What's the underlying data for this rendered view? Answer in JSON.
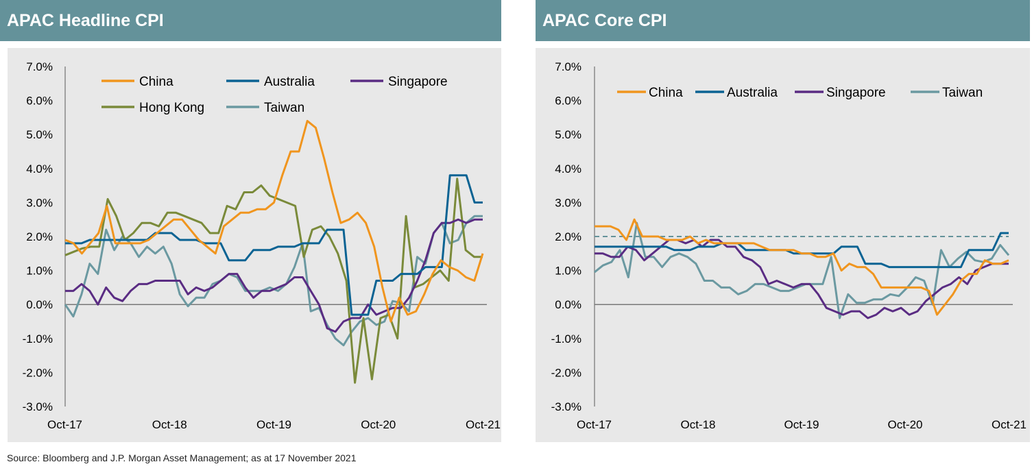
{
  "source": "Source: Bloomberg and J.P. Morgan Asset Management; as at 17 November 2021",
  "colors": {
    "header_bg": "#64929a",
    "plot_bg": "#e8e8e8",
    "China": "#f0951e",
    "Australia": "#0b6393",
    "Singapore": "#5a2c83",
    "Hong Kong": "#7a8a3a",
    "Taiwan": "#6b99a1"
  },
  "chart_data": [
    {
      "type": "line",
      "title": "APAC Headline CPI",
      "x_ticks": [
        "Oct-17",
        "Oct-18",
        "Oct-19",
        "Oct-20",
        "Oct-21"
      ],
      "y_ticks": [
        "7.0%",
        "6.0%",
        "5.0%",
        "4.0%",
        "3.0%",
        "2.0%",
        "1.0%",
        "0.0%",
        "-1.0%",
        "-2.0%",
        "-3.0%"
      ],
      "ylim": [
        -3,
        7
      ],
      "x_start": "2017-10",
      "legend": [
        "China",
        "Australia",
        "Singapore",
        "Hong Kong",
        "Taiwan"
      ],
      "series": [
        {
          "name": "China",
          "values": [
            1.9,
            1.8,
            1.5,
            1.8,
            2.1,
            2.9,
            1.8,
            1.8,
            1.8,
            1.8,
            1.9,
            2.1,
            2.3,
            2.5,
            2.5,
            2.2,
            1.9,
            1.7,
            1.5,
            2.3,
            2.5,
            2.7,
            2.7,
            2.8,
            2.8,
            3.0,
            3.8,
            4.5,
            4.5,
            5.4,
            5.2,
            4.3,
            3.3,
            2.4,
            2.5,
            2.7,
            2.4,
            1.7,
            0.5,
            -0.5,
            0.2,
            -0.3,
            -0.2,
            0.3,
            0.9,
            1.3,
            1.1,
            1.0,
            0.8,
            0.7,
            1.5
          ]
        },
        {
          "name": "Australia",
          "values": [
            1.8,
            1.8,
            1.8,
            1.9,
            1.9,
            1.9,
            1.9,
            1.9,
            1.9,
            1.9,
            1.9,
            2.1,
            2.1,
            2.1,
            1.9,
            1.9,
            1.9,
            1.8,
            1.8,
            1.8,
            1.3,
            1.3,
            1.3,
            1.6,
            1.6,
            1.6,
            1.7,
            1.7,
            1.7,
            1.8,
            1.8,
            1.8,
            2.2,
            2.2,
            2.2,
            -0.3,
            -0.3,
            -0.3,
            0.7,
            0.7,
            0.7,
            0.9,
            0.9,
            0.9,
            1.1,
            1.1,
            1.1,
            3.8,
            3.8,
            3.8,
            3.0,
            3.0
          ]
        },
        {
          "name": "Singapore",
          "values": [
            0.4,
            0.4,
            0.6,
            0.4,
            0.0,
            0.5,
            0.2,
            0.1,
            0.4,
            0.6,
            0.6,
            0.7,
            0.7,
            0.7,
            0.7,
            0.3,
            0.5,
            0.4,
            0.5,
            0.7,
            0.9,
            0.9,
            0.5,
            0.2,
            0.4,
            0.4,
            0.5,
            0.6,
            0.8,
            0.8,
            0.4,
            0.0,
            -0.7,
            -0.8,
            -0.5,
            -0.4,
            -0.4,
            0.0,
            -0.3,
            -0.2,
            -0.1,
            -0.1,
            0.2,
            0.7,
            1.3,
            2.1,
            2.4,
            2.4,
            2.5,
            2.4,
            2.5,
            2.5
          ]
        },
        {
          "name": "Hong Kong",
          "values": [
            1.45,
            1.55,
            1.65,
            1.7,
            1.7,
            3.1,
            2.6,
            1.9,
            2.1,
            2.4,
            2.4,
            2.3,
            2.7,
            2.7,
            2.6,
            2.5,
            2.4,
            2.1,
            2.1,
            2.9,
            2.8,
            3.3,
            3.3,
            3.5,
            3.2,
            3.1,
            3.0,
            2.9,
            1.4,
            2.2,
            2.3,
            2.0,
            1.5,
            0.7,
            -2.3,
            -0.4,
            -2.2,
            -0.4,
            -0.3,
            -1.0,
            2.6,
            0.5,
            0.6,
            0.8,
            1.0,
            0.7,
            3.7,
            1.6,
            1.4,
            1.4
          ]
        },
        {
          "name": "Taiwan",
          "values": [
            0.0,
            -0.35,
            0.3,
            1.2,
            0.9,
            2.2,
            1.6,
            2.0,
            1.8,
            1.4,
            1.7,
            1.5,
            1.7,
            1.2,
            0.3,
            -0.05,
            0.2,
            0.2,
            0.6,
            0.7,
            0.9,
            0.8,
            0.4,
            0.4,
            0.4,
            0.5,
            0.4,
            0.6,
            1.1,
            1.8,
            -0.2,
            -0.1,
            -0.6,
            -1.0,
            -1.2,
            -0.8,
            -0.5,
            -0.4,
            -0.6,
            -0.5,
            0.1,
            0.05,
            -0.2,
            1.4,
            1.2,
            2.1,
            2.4,
            1.8,
            1.9,
            2.4,
            2.6,
            2.6
          ]
        }
      ]
    },
    {
      "type": "line",
      "title": "APAC Core CPI",
      "x_ticks": [
        "Oct-17",
        "Oct-18",
        "Oct-19",
        "Oct-20",
        "Oct-21"
      ],
      "y_ticks": [
        "7.0%",
        "6.0%",
        "5.0%",
        "4.0%",
        "3.0%",
        "2.0%",
        "1.0%",
        "0.0%",
        "-1.0%",
        "-2.0%",
        "-3.0%"
      ],
      "ylim": [
        -3,
        7
      ],
      "x_start": "2017-10",
      "reference_line": 2.0,
      "legend": [
        "China",
        "Australia",
        "Singapore",
        "Taiwan"
      ],
      "series": [
        {
          "name": "China",
          "values": [
            2.3,
            2.3,
            2.3,
            2.2,
            1.9,
            2.5,
            2.0,
            2.0,
            2.0,
            1.9,
            1.9,
            1.9,
            2.0,
            1.8,
            1.9,
            1.8,
            1.8,
            1.8,
            1.8,
            1.8,
            1.8,
            1.7,
            1.6,
            1.6,
            1.6,
            1.6,
            1.5,
            1.5,
            1.4,
            1.4,
            1.5,
            1.0,
            1.2,
            1.1,
            1.1,
            0.9,
            0.5,
            0.5,
            0.5,
            0.5,
            0.5,
            0.5,
            0.4,
            -0.3,
            0.0,
            0.3,
            0.7,
            0.9,
            0.9,
            1.3,
            1.2,
            1.2,
            1.3
          ]
        },
        {
          "name": "Australia",
          "values": [
            1.7,
            1.7,
            1.7,
            1.7,
            1.7,
            1.7,
            1.7,
            1.7,
            1.7,
            1.7,
            1.6,
            1.6,
            1.6,
            1.7,
            1.7,
            1.7,
            1.8,
            1.8,
            1.8,
            1.6,
            1.6,
            1.6,
            1.6,
            1.6,
            1.6,
            1.5,
            1.5,
            1.5,
            1.5,
            1.5,
            1.5,
            1.7,
            1.7,
            1.7,
            1.2,
            1.2,
            1.2,
            1.1,
            1.1,
            1.1,
            1.1,
            1.1,
            1.1,
            1.1,
            1.1,
            1.1,
            1.1,
            1.6,
            1.6,
            1.6,
            1.6,
            2.1,
            2.1
          ]
        },
        {
          "name": "Singapore",
          "values": [
            1.5,
            1.5,
            1.4,
            1.4,
            1.7,
            1.6,
            1.3,
            1.5,
            1.7,
            1.9,
            1.9,
            1.8,
            1.9,
            1.7,
            1.9,
            1.9,
            1.7,
            1.7,
            1.4,
            1.3,
            1.1,
            0.6,
            0.7,
            0.6,
            0.5,
            0.6,
            0.6,
            0.3,
            -0.1,
            -0.2,
            -0.3,
            -0.2,
            -0.2,
            -0.4,
            -0.3,
            -0.1,
            -0.2,
            -0.1,
            -0.3,
            -0.2,
            0.1,
            0.3,
            0.5,
            0.6,
            0.8,
            0.6,
            1.0,
            1.1,
            1.2,
            1.2,
            1.2
          ]
        },
        {
          "name": "Taiwan",
          "values": [
            0.95,
            1.15,
            1.25,
            1.6,
            0.8,
            2.4,
            1.4,
            1.4,
            1.1,
            1.4,
            1.5,
            1.4,
            1.2,
            0.7,
            0.7,
            0.5,
            0.5,
            0.3,
            0.4,
            0.6,
            0.6,
            0.5,
            0.4,
            0.4,
            0.5,
            0.6,
            0.6,
            0.6,
            1.4,
            -0.4,
            0.3,
            0.05,
            0.05,
            0.15,
            0.15,
            0.3,
            0.25,
            0.5,
            0.8,
            0.7,
            0.0,
            1.6,
            1.1,
            1.35,
            1.55,
            1.3,
            1.25,
            1.35,
            1.75,
            1.45
          ]
        }
      ]
    }
  ]
}
